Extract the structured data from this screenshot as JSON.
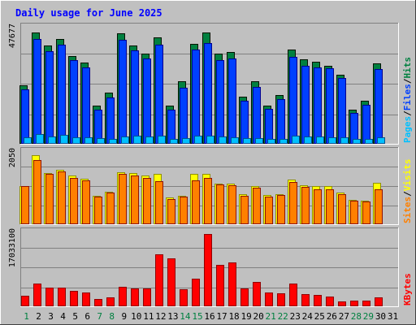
{
  "title": "Daily usage for June 2025",
  "colors": {
    "background": "#c0c0c0",
    "plot_background": "#c0c0c0",
    "title": "#0000ff",
    "hits": "#008040",
    "files": "#0040ff",
    "pages": "#00c0ff",
    "visits": "#ffff00",
    "sites": "#ff8000",
    "kbytes": "#ff0000",
    "weekend_label": "#008040",
    "weekday_label": "#000000"
  },
  "chart_data": [
    {
      "type": "bar",
      "name": "hits-files-pages",
      "y_label_text": "47677",
      "legend": [
        {
          "text": "Pages",
          "color": "#00c0ff"
        },
        {
          "text": "Files",
          "color": "#0040ff"
        },
        {
          "text": "Hits",
          "color": "#008040"
        }
      ],
      "ylim": [
        0,
        47677
      ],
      "categories": [
        "1",
        "2",
        "3",
        "4",
        "5",
        "6",
        "7",
        "8",
        "9",
        "10",
        "11",
        "12",
        "13",
        "14",
        "15",
        "16",
        "17",
        "18",
        "19",
        "20",
        "21",
        "22",
        "23",
        "24",
        "25",
        "26",
        "27",
        "28",
        "29",
        "30",
        "31"
      ],
      "series": [
        {
          "name": "Hits",
          "values": [
            23800,
            45700,
            40200,
            43100,
            35900,
            33100,
            15400,
            20800,
            45400,
            40200,
            36800,
            43600,
            15600,
            25400,
            40800,
            45500,
            37100,
            37700,
            19000,
            25400,
            15400,
            19800,
            38500,
            34500,
            33500,
            32000,
            28100,
            13600,
            17500,
            32800,
            0
          ]
        },
        {
          "name": "Files",
          "values": [
            22000,
            43000,
            38000,
            40500,
            34200,
            31300,
            13600,
            18900,
            42800,
            38400,
            35000,
            40600,
            13800,
            22700,
            38500,
            41200,
            34200,
            34900,
            17300,
            23000,
            14100,
            18100,
            35500,
            31800,
            31100,
            30800,
            26800,
            12400,
            15900,
            30400,
            0
          ]
        },
        {
          "name": "Pages",
          "values": [
            2200,
            3600,
            2800,
            3300,
            2500,
            2400,
            1900,
            1800,
            2800,
            2900,
            2800,
            3000,
            1800,
            2000,
            2900,
            3100,
            2600,
            2400,
            2100,
            1900,
            1800,
            1700,
            2900,
            2800,
            2600,
            2400,
            2200,
            1600,
            1700,
            2400,
            0
          ]
        }
      ]
    },
    {
      "type": "bar",
      "name": "visits-sites",
      "y_label_text": "2050",
      "legend": [
        {
          "text": "Sites",
          "color": "#ff8000"
        },
        {
          "text": "Visits",
          "color": "#ffff00"
        }
      ],
      "ylim": [
        0,
        2050
      ],
      "categories": [
        "1",
        "2",
        "3",
        "4",
        "5",
        "6",
        "7",
        "8",
        "9",
        "10",
        "11",
        "12",
        "13",
        "14",
        "15",
        "16",
        "17",
        "18",
        "19",
        "20",
        "21",
        "22",
        "23",
        "24",
        "25",
        "26",
        "27",
        "28",
        "29",
        "30",
        "31"
      ],
      "series": [
        {
          "name": "Visits",
          "values": [
            1070,
            1950,
            1450,
            1530,
            1370,
            1270,
            800,
            900,
            1460,
            1440,
            1370,
            1420,
            740,
            790,
            1420,
            1420,
            1150,
            1150,
            830,
            1060,
            820,
            840,
            1250,
            1090,
            1060,
            1070,
            890,
            680,
            650,
            1160,
            0
          ]
        },
        {
          "name": "Sites",
          "values": [
            1060,
            1810,
            1410,
            1490,
            1300,
            1240,
            770,
            880,
            1410,
            1380,
            1310,
            1220,
            700,
            770,
            1230,
            1300,
            1110,
            1100,
            800,
            1030,
            780,
            810,
            1180,
            1040,
            990,
            990,
            850,
            660,
            640,
            990,
            0
          ]
        }
      ]
    },
    {
      "type": "bar",
      "name": "kbytes",
      "y_label_text": "17033100",
      "legend": [
        {
          "text": "KBytes",
          "color": "#ff0000"
        }
      ],
      "ylim": [
        0,
        17033100
      ],
      "categories": [
        "1",
        "2",
        "3",
        "4",
        "5",
        "6",
        "7",
        "8",
        "9",
        "10",
        "11",
        "12",
        "13",
        "14",
        "15",
        "16",
        "17",
        "18",
        "19",
        "20",
        "21",
        "22",
        "23",
        "24",
        "25",
        "26",
        "27",
        "28",
        "29",
        "30",
        "31"
      ],
      "series": [
        {
          "name": "KBytes",
          "values": [
            2300000,
            5200000,
            4100000,
            4200000,
            3500000,
            3000000,
            1500000,
            1800000,
            4400000,
            3900000,
            3900000,
            12000000,
            11000000,
            3800000,
            6300000,
            16600000,
            9500000,
            10000000,
            3900000,
            5500000,
            3000000,
            2900000,
            5200000,
            2600000,
            2500000,
            2000000,
            1000000,
            1100000,
            1200000,
            1900000,
            0
          ]
        }
      ]
    }
  ],
  "weekend_days": [
    1,
    7,
    8,
    14,
    15,
    21,
    22,
    28,
    29
  ]
}
